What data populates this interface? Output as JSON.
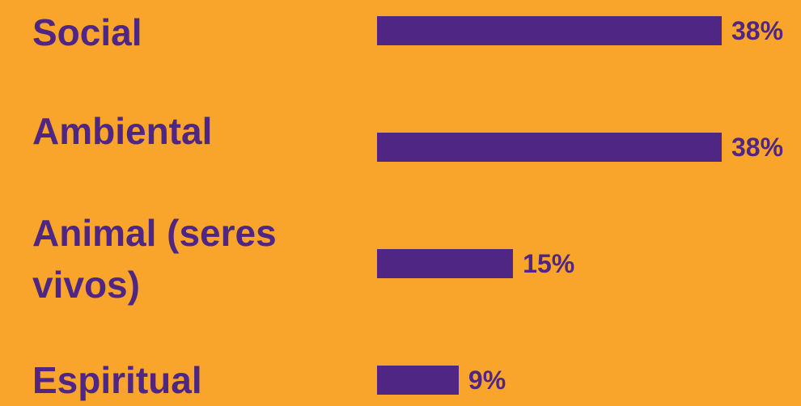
{
  "chart_data": {
    "type": "bar",
    "orientation": "horizontal",
    "categories": [
      "Social",
      "Ambiental",
      "Animal (seres vivos)",
      "Espiritual"
    ],
    "values": [
      38,
      38,
      15,
      9
    ],
    "value_labels": [
      "38%",
      "38%",
      "15%",
      "9%"
    ],
    "color": "#4f2683"
  }
}
